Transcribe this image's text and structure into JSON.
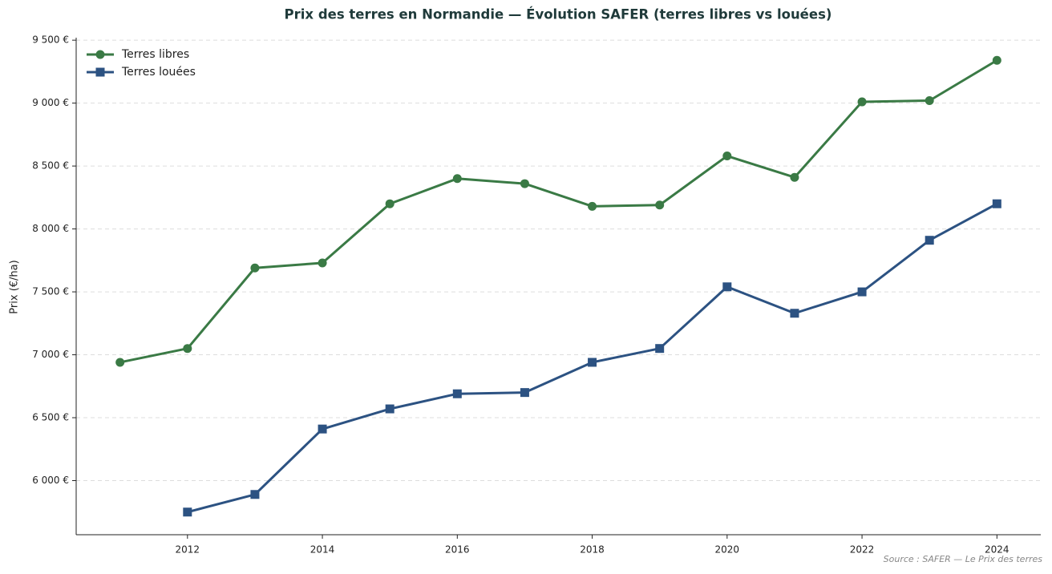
{
  "chart_data": {
    "type": "line",
    "title": "Prix des terres en Normandie — Évolution SAFER (terres libres vs louées)",
    "y_label": "Prix (€/ha)",
    "source": "Source : SAFER — Le Prix des terres",
    "x": [
      2011,
      2012,
      2013,
      2014,
      2015,
      2016,
      2017,
      2018,
      2019,
      2020,
      2021,
      2022,
      2023,
      2024
    ],
    "series": [
      {
        "name": "Terres libres",
        "color": "#3a7a45",
        "marker": "circle",
        "values": [
          6940,
          7050,
          7690,
          7730,
          8200,
          8400,
          8360,
          8180,
          8190,
          8580,
          8410,
          9010,
          9020,
          9340
        ]
      },
      {
        "name": "Terres louées",
        "color": "#2c5282",
        "marker": "square",
        "values": [
          null,
          5750,
          5890,
          6410,
          6570,
          6690,
          6700,
          6940,
          7050,
          7540,
          7330,
          7500,
          7910,
          8200
        ]
      }
    ],
    "xlim": [
      2010.35,
      2024.65
    ],
    "xticks": [
      2012,
      2014,
      2016,
      2018,
      2020,
      2022,
      2024
    ],
    "ylim": [
      5570,
      9520
    ],
    "yticks": [
      {
        "value": 6000,
        "label": "6 000 €"
      },
      {
        "value": 6500,
        "label": "6 500 €"
      },
      {
        "value": 7000,
        "label": "7 000 €"
      },
      {
        "value": 7500,
        "label": "7 500 €"
      },
      {
        "value": 8000,
        "label": "8 000 €"
      },
      {
        "value": 8500,
        "label": "8 500 €"
      },
      {
        "value": 9000,
        "label": "9 000 €"
      },
      {
        "value": 9500,
        "label": "9 500 €"
      }
    ],
    "grid": true,
    "legend": "upper-left"
  }
}
